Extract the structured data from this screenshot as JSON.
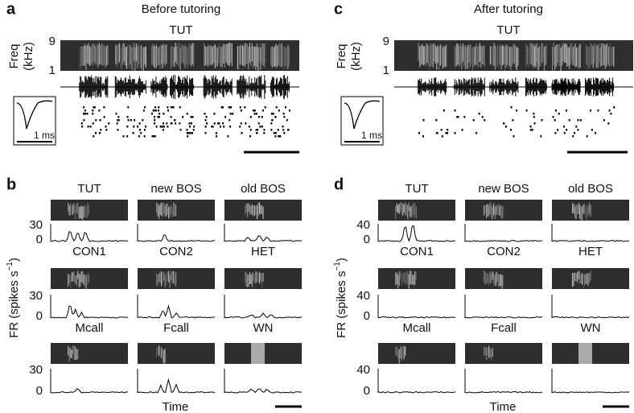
{
  "top_panels": [
    {
      "letter": "a",
      "title": "Before tutoring",
      "stimulus": "TUT",
      "freq_label": [
        "Freq",
        "(kHz)"
      ],
      "freq_ticks": [
        "9",
        "1"
      ],
      "waveform_scale": "1 ms"
    },
    {
      "letter": "c",
      "title": "After tutoring",
      "stimulus": "TUT",
      "freq_label": [
        "Freq",
        "(kHz)"
      ],
      "freq_ticks": [
        "9",
        "1"
      ],
      "waveform_scale": "1 ms"
    }
  ],
  "psth_panels": [
    {
      "letter": "b",
      "y_label": {
        "text": "FR (spikes s",
        "superscript": "−1",
        "close": ")"
      },
      "yticks": [
        "30",
        "0"
      ],
      "x_label": "Time",
      "stimuli": [
        "TUT",
        "new BOS",
        "old BOS",
        "CON1",
        "CON2",
        "HET",
        "Mcall",
        "Fcall",
        "WN"
      ]
    },
    {
      "letter": "d",
      "y_label": {
        "text": "FR (spikes s",
        "superscript": "−1",
        "close": ")"
      },
      "yticks": [
        "40",
        "0"
      ],
      "x_label": "Time",
      "stimuli": [
        "TUT",
        "new BOS",
        "old BOS",
        "CON1",
        "CON2",
        "HET",
        "Mcall",
        "Fcall",
        "WN"
      ]
    }
  ]
}
